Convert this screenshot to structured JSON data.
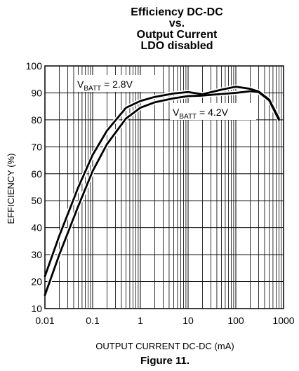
{
  "chart_data": {
    "type": "line",
    "title_lines": [
      "Efficiency DC-DC",
      "vs.",
      "Output Current",
      "LDO disabled"
    ],
    "xlabel": "OUTPUT CURRENT DC-DC (mA)",
    "ylabel": "EFFICIENCY (%)",
    "x_scale": "log",
    "xlim": [
      0.01,
      1000
    ],
    "ylim": [
      10,
      100
    ],
    "x_ticks": [
      {
        "value": 0.01,
        "label": "0.01"
      },
      {
        "value": 0.1,
        "label": "0.1"
      },
      {
        "value": 1,
        "label": "1"
      },
      {
        "value": 10,
        "label": "10"
      },
      {
        "value": 100,
        "label": "100"
      },
      {
        "value": 1000,
        "label": "1000"
      }
    ],
    "y_ticks": [
      10,
      20,
      30,
      40,
      50,
      60,
      70,
      80,
      90,
      100
    ],
    "grid": true,
    "series": [
      {
        "annotation": {
          "prefix": "V",
          "subscript": "BATT",
          "suffix": " = 2.8V"
        },
        "x": [
          0.01,
          0.02,
          0.05,
          0.1,
          0.2,
          0.5,
          1,
          2,
          5,
          10,
          20,
          50,
          100,
          200,
          300,
          500,
          800
        ],
        "y": [
          22,
          37,
          55,
          67,
          76,
          84.5,
          87,
          88.5,
          89.8,
          90.3,
          89.5,
          91.2,
          92.3,
          91.5,
          90.5,
          87.5,
          80.5
        ]
      },
      {
        "annotation": {
          "prefix": "V",
          "subscript": "BATT",
          "suffix": " = 4.2V"
        },
        "x": [
          0.01,
          0.02,
          0.05,
          0.1,
          0.2,
          0.5,
          1,
          2,
          5,
          10,
          20,
          50,
          100,
          200,
          300,
          500,
          800
        ],
        "y": [
          15,
          30,
          48,
          61,
          71,
          80.5,
          84.5,
          86.5,
          88,
          88.8,
          89,
          89.6,
          90,
          90.6,
          90.3,
          87.2,
          80
        ]
      }
    ],
    "caption": "Figure 11."
  }
}
